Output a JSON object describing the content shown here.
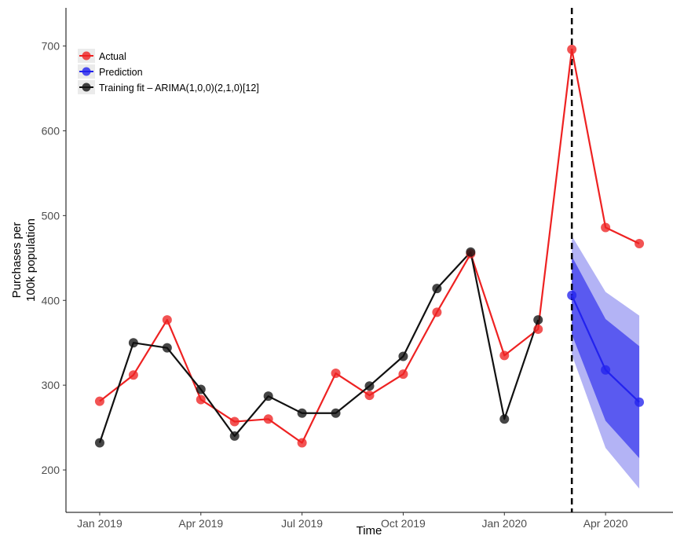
{
  "chart_data": {
    "type": "line",
    "title": "",
    "xlabel": "Time",
    "ylabel_lines": [
      "Purchases per",
      "100k population"
    ],
    "x_ticks": [
      "Jan 2019",
      "Apr 2019",
      "Jul 2019",
      "Oct 2019",
      "Jan 2020",
      "Apr 2020"
    ],
    "y_ticks": [
      200,
      300,
      400,
      500,
      600,
      700
    ],
    "ylim": [
      150,
      745
    ],
    "x_range": [
      "2018-12",
      "2020-06"
    ],
    "grid": false,
    "legend_position": "top-left",
    "forecast_start": "2020-03",
    "series": [
      {
        "name": "Actual",
        "color": "#ee2222",
        "points": [
          {
            "x": "2019-01",
            "y": 281
          },
          {
            "x": "2019-02",
            "y": 312
          },
          {
            "x": "2019-03",
            "y": 377
          },
          {
            "x": "2019-04",
            "y": 283
          },
          {
            "x": "2019-05",
            "y": 257
          },
          {
            "x": "2019-06",
            "y": 260
          },
          {
            "x": "2019-07",
            "y": 232
          },
          {
            "x": "2019-08",
            "y": 314
          },
          {
            "x": "2019-09",
            "y": 288
          },
          {
            "x": "2019-10",
            "y": 313
          },
          {
            "x": "2019-11",
            "y": 386
          },
          {
            "x": "2019-12",
            "y": 455
          },
          {
            "x": "2020-01",
            "y": 335
          },
          {
            "x": "2020-02",
            "y": 366
          },
          {
            "x": "2020-03",
            "y": 696
          },
          {
            "x": "2020-04",
            "y": 486
          },
          {
            "x": "2020-05",
            "y": 467
          }
        ]
      },
      {
        "name": "Prediction",
        "color": "#2222ee",
        "points": [
          {
            "x": "2020-03",
            "y": 406
          },
          {
            "x": "2020-04",
            "y": 318
          },
          {
            "x": "2020-05",
            "y": 280
          }
        ],
        "interval_80": [
          {
            "x": "2020-03",
            "low": 360,
            "high": 452
          },
          {
            "x": "2020-04",
            "low": 258,
            "high": 378
          },
          {
            "x": "2020-05",
            "low": 214,
            "high": 346
          }
        ],
        "interval_95": [
          {
            "x": "2020-03",
            "low": 336,
            "high": 476
          },
          {
            "x": "2020-04",
            "low": 226,
            "high": 410
          },
          {
            "x": "2020-05",
            "low": 178,
            "high": 382
          }
        ]
      },
      {
        "name": "Training fit – ARIMA(1,0,0)(2,1,0)[12]",
        "color": "#111111",
        "points": [
          {
            "x": "2019-01",
            "y": 232
          },
          {
            "x": "2019-02",
            "y": 350
          },
          {
            "x": "2019-03",
            "y": 344
          },
          {
            "x": "2019-04",
            "y": 295
          },
          {
            "x": "2019-05",
            "y": 240
          },
          {
            "x": "2019-06",
            "y": 287
          },
          {
            "x": "2019-07",
            "y": 267
          },
          {
            "x": "2019-08",
            "y": 267
          },
          {
            "x": "2019-09",
            "y": 299
          },
          {
            "x": "2019-10",
            "y": 334
          },
          {
            "x": "2019-11",
            "y": 414
          },
          {
            "x": "2019-12",
            "y": 457
          },
          {
            "x": "2020-01",
            "y": 260
          },
          {
            "x": "2020-02",
            "y": 377
          }
        ]
      }
    ]
  }
}
